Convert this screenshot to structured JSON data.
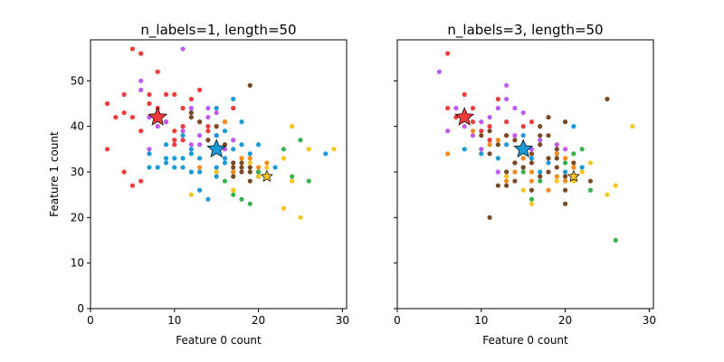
{
  "chart_data": [
    {
      "type": "scatter",
      "title": "n_labels=1, length=50",
      "xlabel": "Feature 0 count",
      "ylabel": "Feature 1 count",
      "xlim": [
        0,
        30.5
      ],
      "ylim": [
        0,
        59
      ],
      "xticks": [
        0,
        10,
        20,
        30
      ],
      "yticks": [
        0,
        10,
        20,
        30,
        40,
        50
      ],
      "show_ytick_labels": true,
      "series": [
        {
          "color": "#ef3b3b",
          "points": [
            [
              2,
              45
            ],
            [
              2,
              35
            ],
            [
              3,
              42
            ],
            [
              4,
              47
            ],
            [
              4,
              43
            ],
            [
              4,
              30
            ],
            [
              5,
              57
            ],
            [
              5,
              42
            ],
            [
              5,
              27
            ],
            [
              6,
              56
            ],
            [
              6,
              39
            ],
            [
              6,
              28
            ],
            [
              7,
              47
            ],
            [
              7,
              45
            ],
            [
              8,
              52
            ],
            [
              8,
              44
            ],
            [
              8,
              43
            ],
            [
              9,
              47
            ],
            [
              9,
              41
            ],
            [
              10,
              47
            ],
            [
              10,
              39
            ],
            [
              10,
              37
            ],
            [
              10,
              36
            ],
            [
              11,
              44
            ],
            [
              11,
              40
            ],
            [
              11,
              37
            ],
            [
              12,
              46
            ],
            [
              13,
              48
            ],
            [
              13,
              41
            ],
            [
              14,
              40
            ],
            [
              14,
              39
            ],
            [
              15,
              38
            ],
            [
              16,
              41
            ],
            [
              17,
              44
            ]
          ]
        },
        {
          "color": "#bf5af2",
          "points": [
            [
              6,
              50
            ],
            [
              6,
              48
            ],
            [
              7,
              42
            ],
            [
              7,
              35
            ],
            [
              8,
              40
            ],
            [
              9,
              41
            ],
            [
              11,
              57
            ],
            [
              11,
              39
            ],
            [
              12,
              44
            ],
            [
              12,
              43
            ],
            [
              12,
              36
            ],
            [
              13,
              38
            ],
            [
              13,
              36
            ],
            [
              14,
              44
            ],
            [
              14,
              42
            ],
            [
              14,
              37
            ],
            [
              15,
              43
            ],
            [
              16,
              35
            ],
            [
              17,
              37
            ]
          ]
        },
        {
          "color": "#1a9bd7",
          "points": [
            [
              7,
              34
            ],
            [
              7,
              31
            ],
            [
              8,
              31
            ],
            [
              9,
              36
            ],
            [
              9,
              33
            ],
            [
              9,
              32
            ],
            [
              10,
              33
            ],
            [
              10,
              31
            ],
            [
              11,
              38
            ],
            [
              11,
              33
            ],
            [
              11,
              31
            ],
            [
              12,
              35
            ],
            [
              12,
              34
            ],
            [
              12,
              30
            ],
            [
              13,
              33
            ],
            [
              13,
              30
            ],
            [
              13,
              26
            ],
            [
              14,
              24
            ],
            [
              15,
              44
            ],
            [
              15,
              38
            ],
            [
              15,
              31
            ],
            [
              15,
              29
            ],
            [
              16,
              39
            ],
            [
              16,
              36
            ],
            [
              16,
              33
            ],
            [
              16,
              32
            ],
            [
              17,
              46
            ],
            [
              17,
              35
            ],
            [
              17,
              30
            ],
            [
              18,
              41
            ],
            [
              18,
              36
            ],
            [
              19,
              34
            ],
            [
              20,
              36
            ],
            [
              20,
              30
            ],
            [
              22,
              31
            ],
            [
              28,
              34
            ]
          ]
        },
        {
          "color": "#f58a1f",
          "points": [
            [
              13,
              31
            ],
            [
              15,
              40
            ],
            [
              16,
              41
            ],
            [
              17,
              30
            ],
            [
              18,
              33
            ],
            [
              19,
              33
            ],
            [
              20,
              31
            ],
            [
              21,
              32
            ]
          ]
        },
        {
          "color": "#7a4a25",
          "points": [
            [
              12,
              43
            ],
            [
              12,
              42
            ],
            [
              13,
              41
            ],
            [
              14,
              37
            ],
            [
              15,
              40
            ],
            [
              16,
              36
            ],
            [
              17,
              32
            ],
            [
              17,
              31
            ],
            [
              17,
              29
            ],
            [
              18,
              32
            ],
            [
              18,
              31
            ],
            [
              18,
              30
            ],
            [
              19,
              49
            ],
            [
              19,
              31
            ],
            [
              19,
              30
            ],
            [
              19,
              28
            ],
            [
              20,
              30
            ],
            [
              20,
              29
            ]
          ]
        },
        {
          "color": "#38b24a",
          "points": [
            [
              15,
              30
            ],
            [
              16,
              28
            ],
            [
              17,
              25
            ],
            [
              18,
              24
            ],
            [
              19,
              23
            ],
            [
              20,
              30
            ],
            [
              23,
              35
            ],
            [
              24,
              29
            ],
            [
              25,
              37
            ],
            [
              26,
              28
            ]
          ]
        },
        {
          "color": "#f7c520",
          "points": [
            [
              12,
              25
            ],
            [
              15,
              30
            ],
            [
              17,
              26
            ],
            [
              19,
              32
            ],
            [
              20,
              29
            ],
            [
              21,
              31
            ],
            [
              23,
              33
            ],
            [
              23,
              22
            ],
            [
              24,
              40
            ],
            [
              24,
              28
            ],
            [
              25,
              20
            ],
            [
              26,
              35
            ],
            [
              29,
              35
            ]
          ]
        }
      ],
      "centroids": [
        {
          "color": "#ef3b3b",
          "x": 8,
          "y": 42,
          "size": "large"
        },
        {
          "color": "#1a9bd7",
          "x": 15,
          "y": 35,
          "size": "large"
        },
        {
          "color": "#f7c520",
          "x": 21,
          "y": 29,
          "size": "small"
        }
      ]
    },
    {
      "type": "scatter",
      "title": "n_labels=3, length=50",
      "xlabel": "Feature 0 count",
      "ylabel": "",
      "xlim": [
        0,
        30.5
      ],
      "ylim": [
        0,
        59
      ],
      "xticks": [
        0,
        10,
        20,
        30
      ],
      "yticks": [
        0,
        10,
        20,
        30,
        40,
        50
      ],
      "show_ytick_labels": false,
      "series": [
        {
          "color": "#ef3b3b",
          "points": [
            [
              6,
              56
            ],
            [
              6,
              44
            ],
            [
              7,
              42
            ],
            [
              8,
              47
            ],
            [
              8,
              43
            ],
            [
              9,
              44
            ],
            [
              9,
              41
            ],
            [
              10,
              39
            ],
            [
              11,
              40
            ],
            [
              11,
              37
            ],
            [
              12,
              46
            ],
            [
              13,
              41
            ],
            [
              13,
              38
            ],
            [
              15,
              40
            ],
            [
              16,
              41
            ]
          ]
        },
        {
          "color": "#bf5af2",
          "points": [
            [
              5,
              52
            ],
            [
              6,
              39
            ],
            [
              7,
              44
            ],
            [
              8,
              42
            ],
            [
              8,
              40
            ],
            [
              9,
              38
            ],
            [
              10,
              41
            ],
            [
              10,
              35
            ],
            [
              11,
              42
            ],
            [
              12,
              44
            ],
            [
              12,
              30
            ],
            [
              13,
              49
            ],
            [
              13,
              46
            ],
            [
              14,
              44
            ],
            [
              14,
              38
            ],
            [
              15,
              43
            ],
            [
              15,
              36
            ],
            [
              16,
              35
            ],
            [
              17,
              37
            ],
            [
              19,
              36
            ],
            [
              20,
              35
            ]
          ]
        },
        {
          "color": "#1a9bd7",
          "points": [
            [
              8,
              35
            ],
            [
              10,
              34
            ],
            [
              12,
              33
            ],
            [
              13,
              36
            ],
            [
              14,
              32
            ],
            [
              15,
              38
            ],
            [
              15,
              31
            ],
            [
              16,
              33
            ],
            [
              17,
              30
            ],
            [
              18,
              32
            ],
            [
              19,
              34
            ],
            [
              20,
              30
            ],
            [
              21,
              40
            ],
            [
              22,
              31
            ]
          ]
        },
        {
          "color": "#f58a1f",
          "points": [
            [
              6,
              34
            ],
            [
              9,
              39
            ],
            [
              11,
              36
            ],
            [
              12,
              37
            ],
            [
              13,
              28
            ],
            [
              14,
              30
            ],
            [
              15,
              33
            ],
            [
              16,
              30
            ],
            [
              16,
              28
            ],
            [
              17,
              29
            ],
            [
              18,
              26
            ],
            [
              19,
              34
            ],
            [
              19,
              29
            ],
            [
              20,
              33
            ],
            [
              20,
              28
            ],
            [
              21,
              31
            ]
          ]
        },
        {
          "color": "#7a4a25",
          "points": [
            [
              10,
              38
            ],
            [
              11,
              39
            ],
            [
              11,
              34
            ],
            [
              11,
              20
            ],
            [
              12,
              36
            ],
            [
              12,
              27
            ],
            [
              13,
              38
            ],
            [
              13,
              30
            ],
            [
              13,
              27
            ],
            [
              14,
              37
            ],
            [
              14,
              32
            ],
            [
              14,
              28
            ],
            [
              15,
              36
            ],
            [
              15,
              31
            ],
            [
              16,
              34
            ],
            [
              16,
              32
            ],
            [
              16,
              26
            ],
            [
              17,
              40
            ],
            [
              17,
              38
            ],
            [
              17,
              36
            ],
            [
              17,
              29
            ],
            [
              18,
              42
            ],
            [
              18,
              38
            ],
            [
              18,
              33
            ],
            [
              18,
              30
            ],
            [
              19,
              35
            ],
            [
              19,
              33
            ],
            [
              19,
              31
            ],
            [
              20,
              41
            ],
            [
              20,
              29
            ],
            [
              20,
              26
            ],
            [
              20,
              23
            ],
            [
              21,
              32
            ],
            [
              21,
              29
            ],
            [
              23,
              28
            ],
            [
              25,
              46
            ]
          ]
        },
        {
          "color": "#38b24a",
          "points": [
            [
              15,
              30
            ],
            [
              16,
              24
            ],
            [
              17,
              28
            ],
            [
              20,
              32
            ],
            [
              21,
              34
            ],
            [
              22,
              35
            ],
            [
              23,
              26
            ],
            [
              26,
              15
            ]
          ]
        },
        {
          "color": "#f7c520",
          "points": [
            [
              13,
              29
            ],
            [
              15,
              26
            ],
            [
              16,
              23
            ],
            [
              19,
              28
            ],
            [
              21,
              28
            ],
            [
              22,
              30
            ],
            [
              23,
              32
            ],
            [
              25,
              25
            ],
            [
              26,
              27
            ],
            [
              28,
              40
            ]
          ]
        }
      ],
      "centroids": [
        {
          "color": "#ef3b3b",
          "x": 8,
          "y": 42,
          "size": "large"
        },
        {
          "color": "#1a9bd7",
          "x": 15,
          "y": 35,
          "size": "large"
        },
        {
          "color": "#f7c520",
          "x": 21,
          "y": 29,
          "size": "small"
        }
      ]
    }
  ]
}
